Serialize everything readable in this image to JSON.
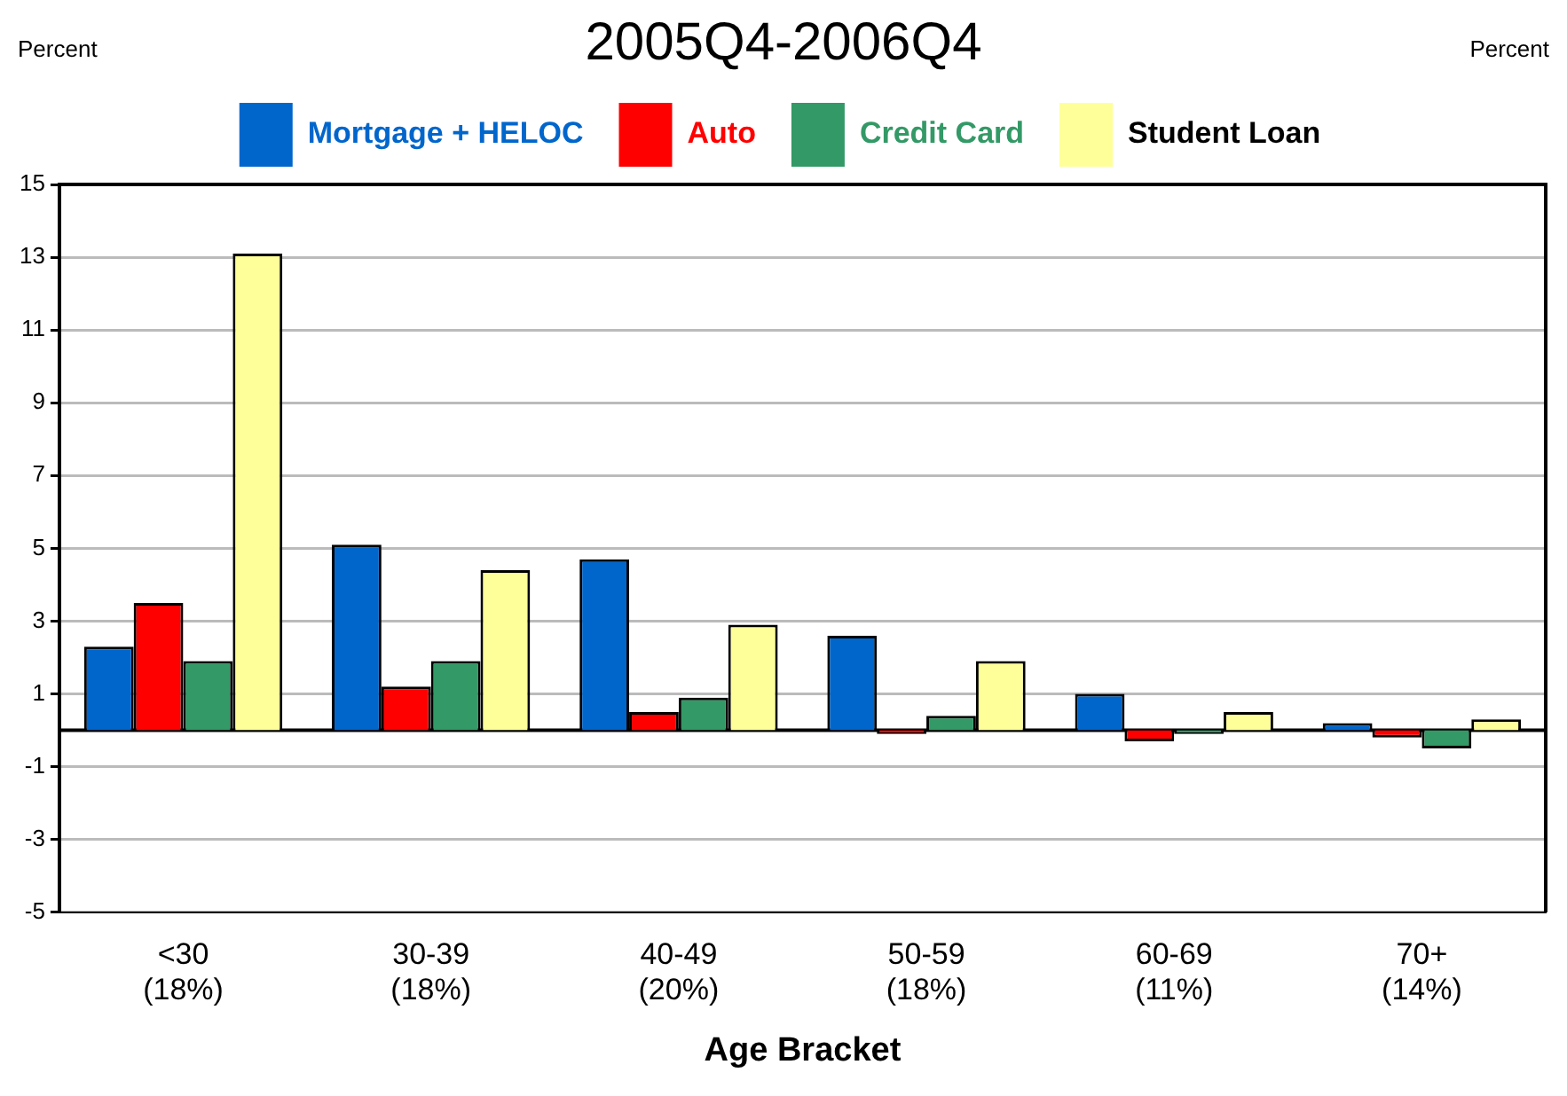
{
  "chart_data": {
    "type": "bar",
    "title": "2005Q4-2006Q4",
    "ylabel": "Percent",
    "y2label": "Percent",
    "xlabel": "Age Bracket",
    "categories": [
      "<30 (18%)",
      "30-39 (18%)",
      "40-49 (20%)",
      "50-59 (18%)",
      "60-69 (11%)",
      "70+ (14%)"
    ],
    "series": [
      {
        "name": "Mortgage + HELOC",
        "color": "#0066cc",
        "values": [
          2.3,
          5.1,
          4.7,
          2.6,
          1.0,
          0.2
        ]
      },
      {
        "name": "Auto",
        "color": "#ff0000",
        "values": [
          3.5,
          1.2,
          0.5,
          -0.1,
          -0.3,
          -0.2
        ]
      },
      {
        "name": "Credit Card",
        "color": "#339966",
        "values": [
          1.9,
          1.9,
          0.9,
          0.4,
          -0.1,
          -0.5
        ]
      },
      {
        "name": "Student Loan",
        "color": "#ffff99",
        "values": [
          13.1,
          4.4,
          2.9,
          1.9,
          0.5,
          0.3
        ]
      }
    ],
    "ylim": [
      -5,
      15
    ],
    "yticks": [
      -5,
      -3,
      -1,
      1,
      3,
      5,
      7,
      9,
      11,
      13,
      15
    ],
    "grid": "y",
    "legend": "top"
  }
}
